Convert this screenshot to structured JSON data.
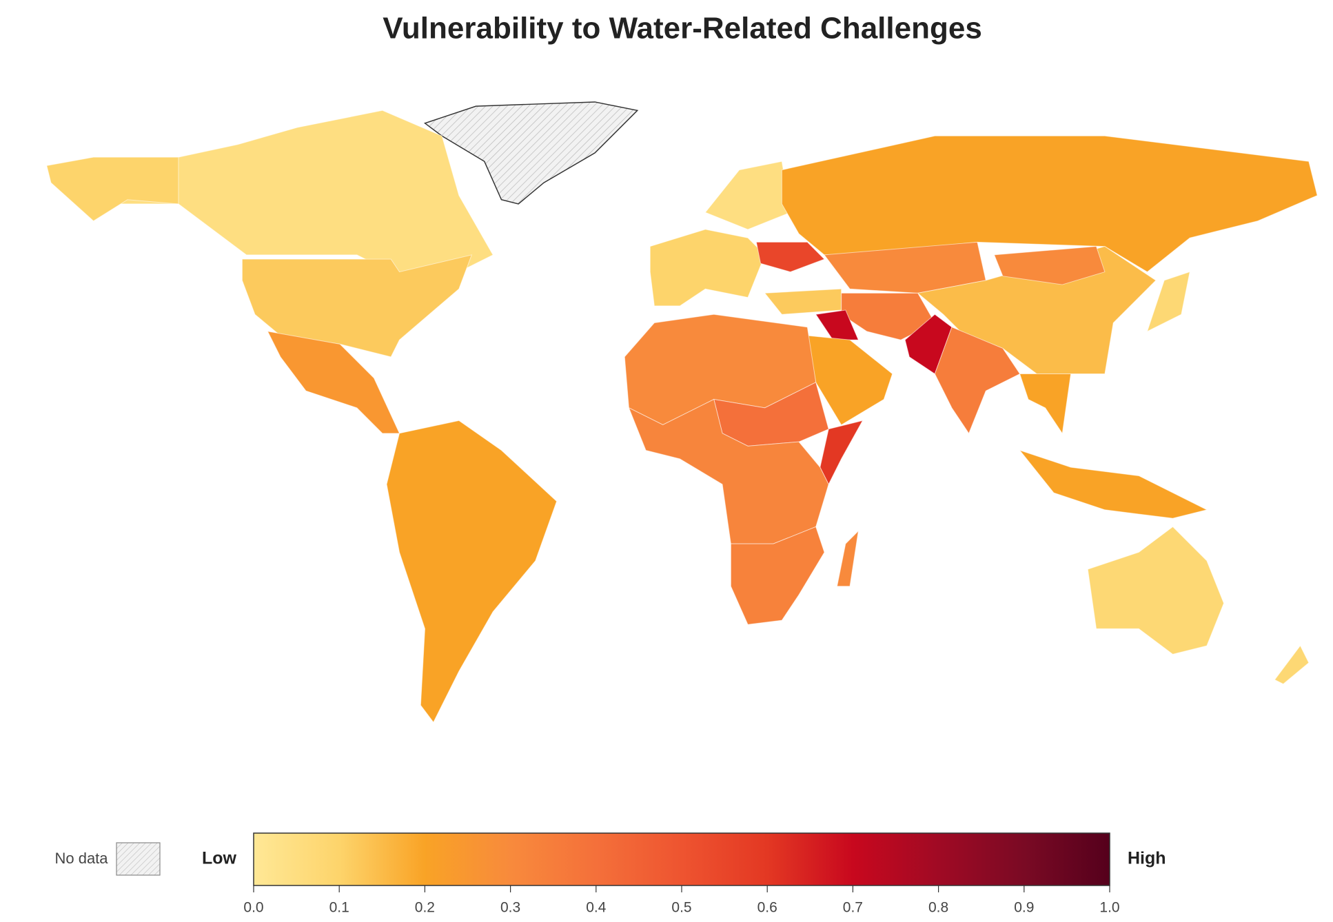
{
  "chart_data": {
    "type": "choropleth",
    "title": "Vulnerability to Water-Related Challenges",
    "values": [
      0.05,
      0.1,
      0.12,
      0.25,
      0.2,
      0.1,
      0.05,
      0.55,
      0.2,
      0.12,
      0.3,
      0.15,
      0.3,
      0.35,
      0.7,
      0.7,
      0.35,
      0.2,
      0.3,
      0.4,
      0.6,
      0.32,
      0.33,
      0.2,
      0.2,
      0.08,
      0.08,
      0.08,
      0.3
    ],
    "clim": [
      0,
      1
    ],
    "colors": [
      "#ffe896",
      "#fdd46b",
      "#f9a326",
      "#f88a3c",
      "#f4703a",
      "#ee5430",
      "#e33823",
      "#c8081e",
      "#a00a24",
      "#7a0a24",
      "#55001c"
    ],
    "no_data_label": "No data",
    "low_label": "Low",
    "high_label": "High",
    "cticks": [
      {
        "value": 0,
        "label": "0.0"
      },
      0.1,
      0.2,
      0.3,
      0.4,
      0.5,
      0.6,
      0.7,
      0.8,
      0.9,
      {
        "value": 1,
        "label": "1.0"
      }
    ]
  }
}
